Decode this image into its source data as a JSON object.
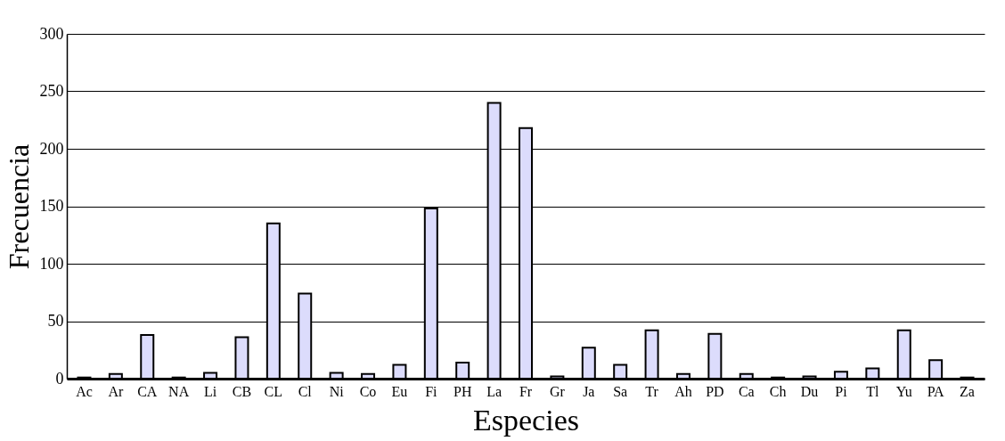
{
  "chart_data": {
    "type": "bar",
    "xlabel": "Especies",
    "ylabel": "Frecuencia",
    "categories": [
      "Ac",
      "Ar",
      "CA",
      "NA",
      "Li",
      "CB",
      "CL",
      "Cl",
      "Ni",
      "Co",
      "Eu",
      "Fi",
      "PH",
      "La",
      "Fr",
      "Gr",
      "Ja",
      "Sa",
      "Tr",
      "Ah",
      "PD",
      "Ca",
      "Ch",
      "Du",
      "Pi",
      "Tl",
      "Yu",
      "PA",
      "Za"
    ],
    "values": [
      1,
      4,
      38,
      1,
      5,
      36,
      135,
      74,
      5,
      4,
      12,
      148,
      14,
      240,
      218,
      2,
      27,
      12,
      42,
      4,
      39,
      4,
      1,
      2,
      6,
      9,
      42,
      16,
      1
    ],
    "color": "#dcdcfc",
    "ylim": [
      0,
      300
    ],
    "yticks": [
      0,
      50,
      100,
      150,
      200,
      250,
      300
    ],
    "grid": "y"
  }
}
